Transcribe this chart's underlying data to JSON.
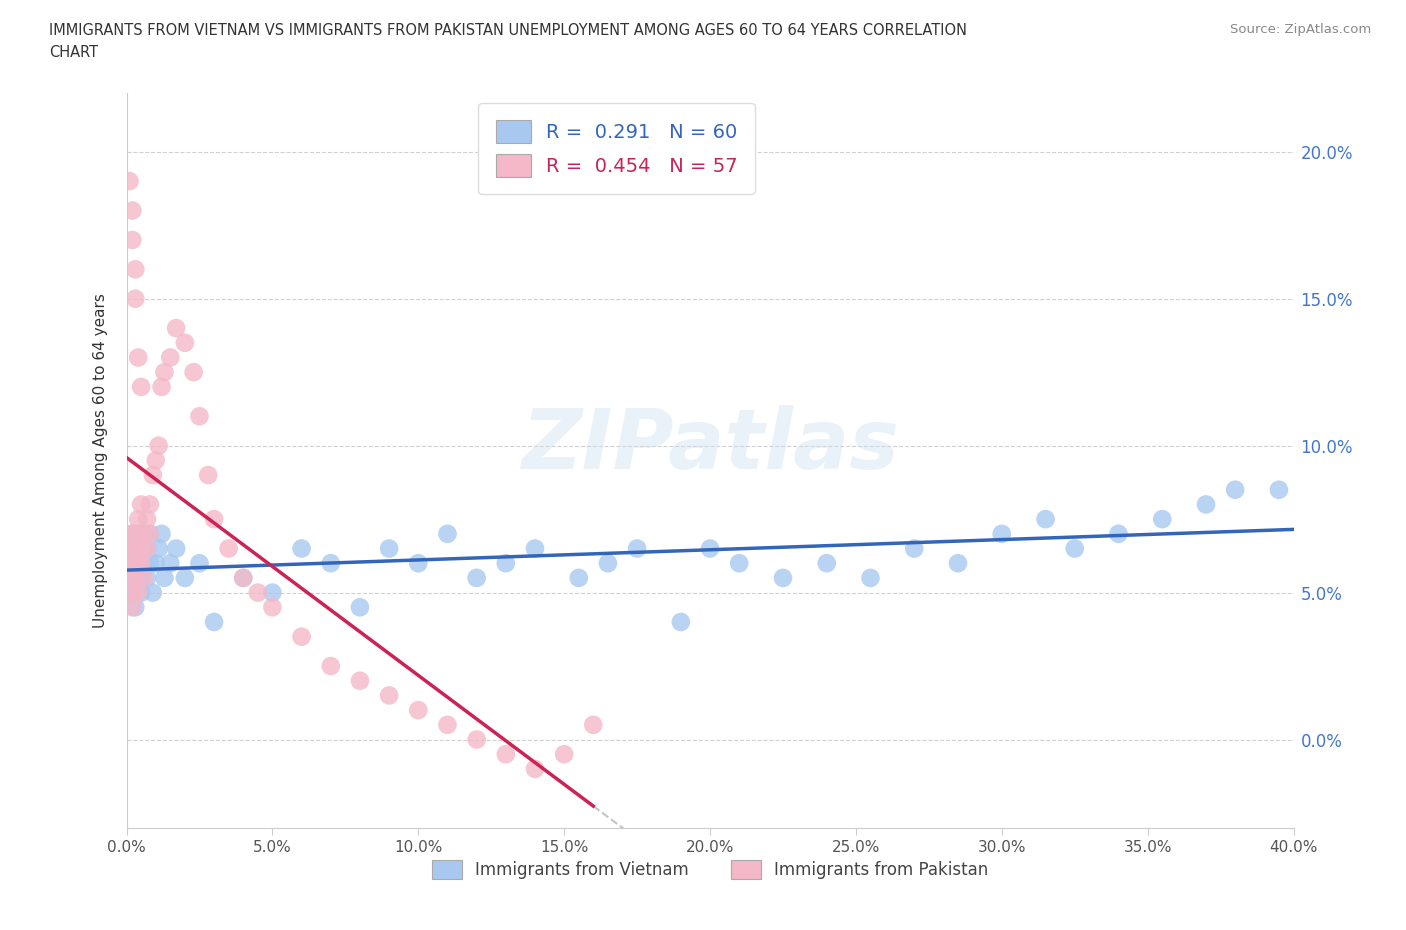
{
  "title_line1": "IMMIGRANTS FROM VIETNAM VS IMMIGRANTS FROM PAKISTAN UNEMPLOYMENT AMONG AGES 60 TO 64 YEARS CORRELATION",
  "title_line2": "CHART",
  "source": "Source: ZipAtlas.com",
  "ylabel": "Unemployment Among Ages 60 to 64 years",
  "legend_label_vietnam": "Immigrants from Vietnam",
  "legend_label_pakistan": "Immigrants from Pakistan",
  "r_vietnam": 0.291,
  "n_vietnam": 60,
  "r_pakistan": 0.454,
  "n_pakistan": 57,
  "color_vietnam": "#a8c8f0",
  "color_pakistan": "#f4b8c8",
  "line_color_vietnam": "#3366bb",
  "line_color_pakistan": "#cc2255",
  "xlim": [
    0.0,
    0.4
  ],
  "ylim": [
    -0.03,
    0.22
  ],
  "xticks": [
    0.0,
    0.05,
    0.1,
    0.15,
    0.2,
    0.25,
    0.3,
    0.35,
    0.4
  ],
  "yticks": [
    0.0,
    0.05,
    0.1,
    0.15,
    0.2
  ],
  "background_color": "#ffffff",
  "watermark": "ZIPatlas",
  "vietnam_x": [
    0.001,
    0.001,
    0.002,
    0.002,
    0.002,
    0.003,
    0.003,
    0.003,
    0.004,
    0.004,
    0.004,
    0.005,
    0.005,
    0.005,
    0.006,
    0.006,
    0.007,
    0.007,
    0.008,
    0.008,
    0.009,
    0.01,
    0.011,
    0.012,
    0.013,
    0.015,
    0.017,
    0.02,
    0.025,
    0.03,
    0.04,
    0.05,
    0.06,
    0.07,
    0.08,
    0.09,
    0.1,
    0.11,
    0.12,
    0.13,
    0.14,
    0.155,
    0.165,
    0.175,
    0.19,
    0.2,
    0.21,
    0.225,
    0.24,
    0.255,
    0.27,
    0.285,
    0.3,
    0.315,
    0.325,
    0.34,
    0.355,
    0.37,
    0.38,
    0.395
  ],
  "vietnam_y": [
    0.06,
    0.055,
    0.065,
    0.05,
    0.07,
    0.06,
    0.045,
    0.065,
    0.055,
    0.07,
    0.06,
    0.065,
    0.05,
    0.055,
    0.06,
    0.07,
    0.055,
    0.065,
    0.06,
    0.07,
    0.05,
    0.06,
    0.065,
    0.07,
    0.055,
    0.06,
    0.065,
    0.055,
    0.06,
    0.04,
    0.055,
    0.05,
    0.065,
    0.06,
    0.045,
    0.065,
    0.06,
    0.07,
    0.055,
    0.06,
    0.065,
    0.055,
    0.06,
    0.065,
    0.04,
    0.065,
    0.06,
    0.055,
    0.06,
    0.055,
    0.065,
    0.06,
    0.07,
    0.075,
    0.065,
    0.07,
    0.075,
    0.08,
    0.085,
    0.085
  ],
  "pakistan_x": [
    0.001,
    0.001,
    0.001,
    0.002,
    0.002,
    0.002,
    0.002,
    0.003,
    0.003,
    0.003,
    0.003,
    0.004,
    0.004,
    0.004,
    0.005,
    0.005,
    0.005,
    0.006,
    0.006,
    0.007,
    0.007,
    0.008,
    0.008,
    0.009,
    0.01,
    0.011,
    0.012,
    0.013,
    0.015,
    0.017,
    0.02,
    0.023,
    0.025,
    0.028,
    0.03,
    0.035,
    0.04,
    0.045,
    0.05,
    0.06,
    0.07,
    0.08,
    0.09,
    0.1,
    0.11,
    0.12,
    0.13,
    0.14,
    0.15,
    0.16,
    0.001,
    0.002,
    0.002,
    0.003,
    0.003,
    0.004,
    0.005
  ],
  "pakistan_y": [
    0.06,
    0.055,
    0.065,
    0.05,
    0.06,
    0.07,
    0.045,
    0.055,
    0.07,
    0.06,
    0.065,
    0.06,
    0.05,
    0.075,
    0.06,
    0.08,
    0.065,
    0.07,
    0.055,
    0.075,
    0.065,
    0.08,
    0.07,
    0.09,
    0.095,
    0.1,
    0.12,
    0.125,
    0.13,
    0.14,
    0.135,
    0.125,
    0.11,
    0.09,
    0.075,
    0.065,
    0.055,
    0.05,
    0.045,
    0.035,
    0.025,
    0.02,
    0.015,
    0.01,
    0.005,
    0.0,
    -0.005,
    -0.01,
    -0.005,
    0.005,
    0.19,
    0.18,
    0.17,
    0.16,
    0.15,
    0.13,
    0.12
  ]
}
